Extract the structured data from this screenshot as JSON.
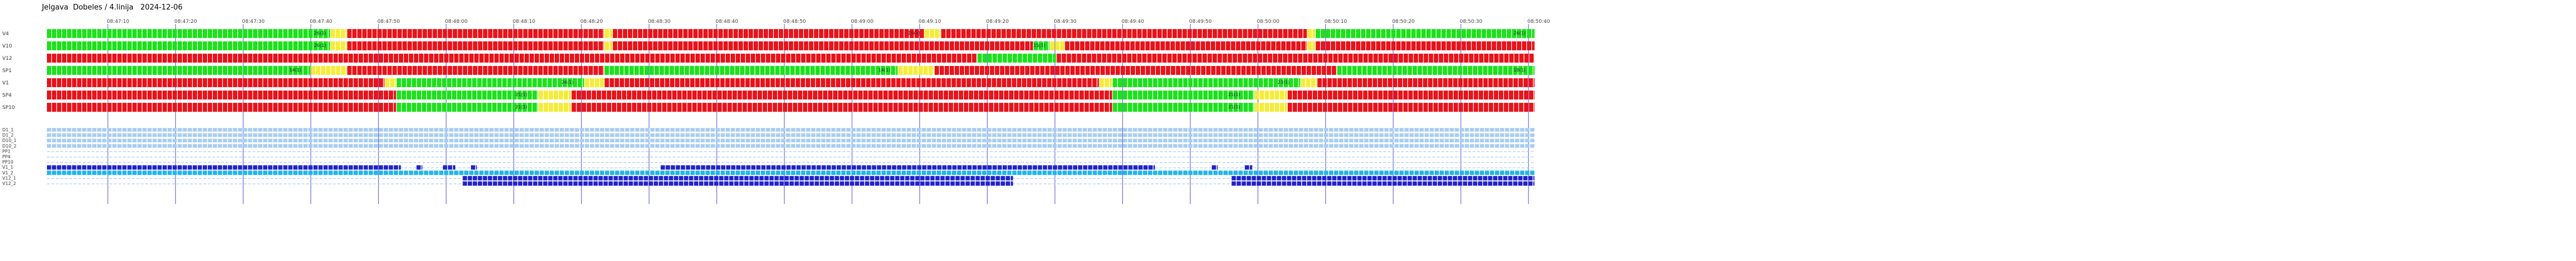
{
  "title": "Jelgava  Dobeles / 4.linija   2024-12-06",
  "colors": {
    "red": "#e8131b",
    "green": "#1ce11c",
    "yellow": "#f4ec3a",
    "light_blue": "#a9cdf2",
    "blue_fill": "#2222cc",
    "cyan": "#22b6e8",
    "hour_line": "#6a6adc",
    "label_text": "#333333"
  },
  "time_ticks": [
    "08:47:10",
    "08:47:20",
    "08:47:30",
    "08:47:40",
    "08:47:50",
    "08:48:00",
    "08:48:10",
    "08:48:20",
    "08:48:30",
    "08:48:40",
    "08:48:50",
    "08:49:00",
    "08:49:10",
    "08:49:20",
    "08:49:30",
    "08:49:40",
    "08:49:50",
    "08:50:00",
    "08:50:10",
    "08:50:20",
    "08:50:30",
    "08:50:40"
  ],
  "signal_rows": [
    {
      "label": "V4",
      "segments": [
        {
          "from": 0,
          "to": 172,
          "color": "green"
        },
        {
          "from": 172,
          "to": 182,
          "color": "yellow"
        },
        {
          "from": 182,
          "to": 338,
          "color": "red"
        },
        {
          "from": 338,
          "to": 343,
          "color": "yellow"
        },
        {
          "from": 343,
          "to": 532,
          "color": "red"
        },
        {
          "from": 532,
          "to": 542,
          "color": "yellow"
        },
        {
          "from": 542,
          "to": 764,
          "color": "red"
        },
        {
          "from": 764,
          "to": 769,
          "color": "yellow"
        },
        {
          "from": 769,
          "to": 902,
          "color": "green"
        }
      ],
      "tags": [
        {
          "at": 170,
          "text": "26(1)"
        },
        {
          "at": 530,
          "text": "15(1)"
        },
        {
          "at": 897,
          "text": "26(1)"
        }
      ]
    },
    {
      "label": "V10",
      "segments": [
        {
          "from": 0,
          "to": 172,
          "color": "green"
        },
        {
          "from": 172,
          "to": 182,
          "color": "yellow"
        },
        {
          "from": 182,
          "to": 338,
          "color": "red"
        },
        {
          "from": 338,
          "to": 343,
          "color": "yellow"
        },
        {
          "from": 343,
          "to": 598,
          "color": "red"
        },
        {
          "from": 598,
          "to": 608,
          "color": "green"
        },
        {
          "from": 608,
          "to": 617,
          "color": "yellow"
        },
        {
          "from": 617,
          "to": 764,
          "color": "red"
        },
        {
          "from": 764,
          "to": 769,
          "color": "yellow"
        },
        {
          "from": 769,
          "to": 902,
          "color": "red"
        }
      ],
      "tags": [
        {
          "at": 170,
          "text": "26(1)"
        },
        {
          "at": 606,
          "text": "15(1)"
        }
      ]
    },
    {
      "label": "V12",
      "segments": [
        {
          "from": 0,
          "to": 564,
          "color": "red"
        },
        {
          "from": 564,
          "to": 612,
          "color": "green"
        },
        {
          "from": 612,
          "to": 902,
          "color": "red"
        }
      ],
      "tags": []
    },
    {
      "label": "SP1",
      "segments": [
        {
          "from": 0,
          "to": 160,
          "color": "green"
        },
        {
          "from": 160,
          "to": 182,
          "color": "yellow"
        },
        {
          "from": 182,
          "to": 338,
          "color": "red"
        },
        {
          "from": 338,
          "to": 350,
          "color": "green"
        },
        {
          "from": 350,
          "to": 516,
          "color": "green"
        },
        {
          "from": 516,
          "to": 538,
          "color": "yellow"
        },
        {
          "from": 538,
          "to": 782,
          "color": "red"
        },
        {
          "from": 782,
          "to": 902,
          "color": "green"
        }
      ],
      "tags": [
        {
          "at": 155,
          "text": "14(1)"
        },
        {
          "at": 512,
          "text": "14(1)"
        },
        {
          "at": 897,
          "text": "18(1)"
        }
      ]
    },
    {
      "label": "V1",
      "segments": [
        {
          "from": 0,
          "to": 205,
          "color": "red"
        },
        {
          "from": 205,
          "to": 212,
          "color": "yellow"
        },
        {
          "from": 212,
          "to": 326,
          "color": "green"
        },
        {
          "from": 326,
          "to": 338,
          "color": "yellow"
        },
        {
          "from": 338,
          "to": 638,
          "color": "red"
        },
        {
          "from": 638,
          "to": 646,
          "color": "yellow"
        },
        {
          "from": 646,
          "to": 760,
          "color": "green"
        },
        {
          "from": 760,
          "to": 770,
          "color": "yellow"
        },
        {
          "from": 770,
          "to": 902,
          "color": "red"
        }
      ],
      "tags": [
        {
          "at": 320,
          "text": "26(1)"
        },
        {
          "at": 754,
          "text": "23(1)"
        }
      ]
    },
    {
      "label": "SP4",
      "segments": [
        {
          "from": 0,
          "to": 212,
          "color": "red"
        },
        {
          "from": 212,
          "to": 298,
          "color": "green"
        },
        {
          "from": 298,
          "to": 318,
          "color": "yellow"
        },
        {
          "from": 318,
          "to": 646,
          "color": "red"
        },
        {
          "from": 646,
          "to": 732,
          "color": "green"
        },
        {
          "from": 732,
          "to": 752,
          "color": "yellow"
        },
        {
          "from": 752,
          "to": 902,
          "color": "red"
        }
      ],
      "tags": [
        {
          "at": 292,
          "text": "21(1)"
        },
        {
          "at": 724,
          "text": "21(1)"
        }
      ]
    },
    {
      "label": "SP10",
      "segments": [
        {
          "from": 0,
          "to": 212,
          "color": "red"
        },
        {
          "from": 212,
          "to": 298,
          "color": "green"
        },
        {
          "from": 298,
          "to": 318,
          "color": "yellow"
        },
        {
          "from": 318,
          "to": 646,
          "color": "red"
        },
        {
          "from": 646,
          "to": 732,
          "color": "green"
        },
        {
          "from": 732,
          "to": 752,
          "color": "yellow"
        },
        {
          "from": 752,
          "to": 902,
          "color": "red"
        }
      ],
      "tags": [
        {
          "at": 292,
          "text": "21(1)"
        },
        {
          "at": 724,
          "text": "21(1)"
        }
      ]
    }
  ],
  "detector_rows": [
    {
      "label": "D1_1",
      "style": "dashed",
      "pulses": []
    },
    {
      "label": "D1_2",
      "style": "dashed",
      "pulses": []
    },
    {
      "label": "D10_1",
      "style": "dashed",
      "pulses": []
    },
    {
      "label": "D10_2",
      "style": "dashed",
      "pulses": []
    },
    {
      "label": "PP1",
      "style": "line",
      "pulses": []
    },
    {
      "label": "PP4",
      "style": "line",
      "pulses": []
    },
    {
      "label": "PP10",
      "style": "line",
      "pulses": []
    },
    {
      "label": "V1_1",
      "style": "line",
      "pulses": [
        {
          "from": 0,
          "to": 215
        },
        {
          "from": 224,
          "to": 228
        },
        {
          "from": 240,
          "to": 248
        },
        {
          "from": 257,
          "to": 261
        },
        {
          "from": 372,
          "to": 672
        },
        {
          "from": 706,
          "to": 710
        },
        {
          "from": 726,
          "to": 731
        }
      ]
    },
    {
      "label": "V1_2",
      "style": "cyan",
      "pulses": [
        {
          "from": 0,
          "to": 902
        }
      ]
    },
    {
      "label": "V12_1",
      "style": "line",
      "pulses": [
        {
          "from": 252,
          "to": 586
        },
        {
          "from": 718,
          "to": 902
        }
      ]
    },
    {
      "label": "V12_2",
      "style": "line",
      "pulses": [
        {
          "from": 252,
          "to": 586
        },
        {
          "from": 718,
          "to": 902
        }
      ]
    }
  ]
}
